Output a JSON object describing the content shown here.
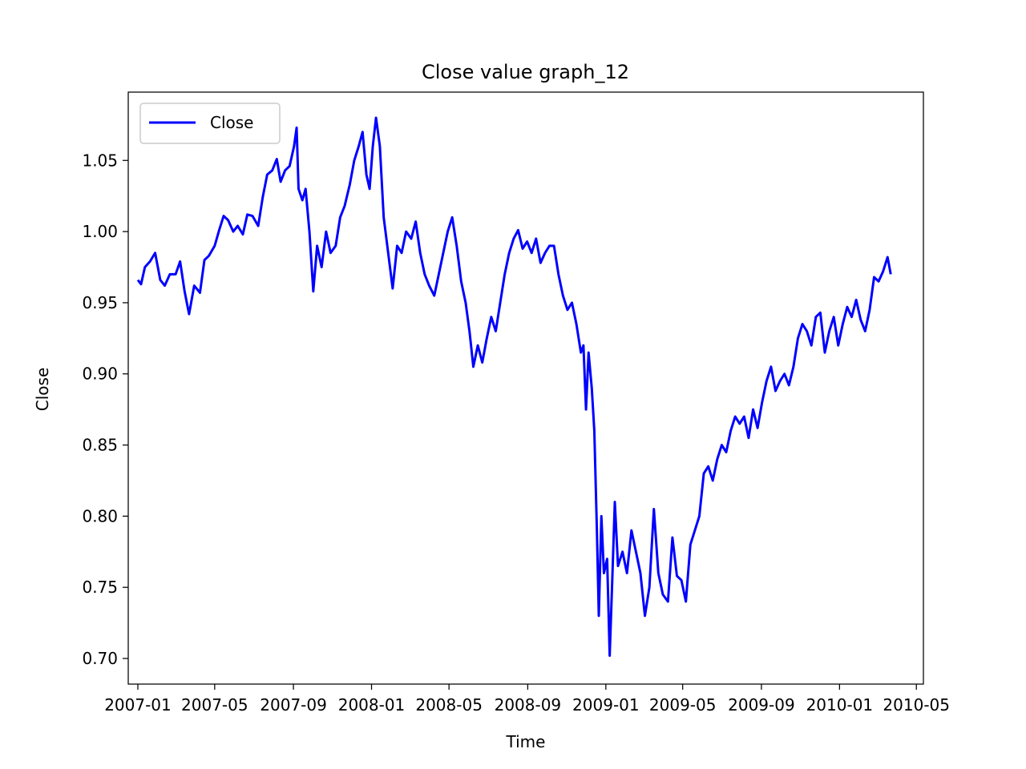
{
  "chart_data": {
    "type": "line",
    "title": "Close value graph_12",
    "xlabel": "Time",
    "ylabel": "Close",
    "xlim": [
      "2006-12-17",
      "2010-05-12"
    ],
    "ylim": [
      0.682,
      1.098
    ],
    "x_ticks": [
      "2007-01",
      "2007-05",
      "2007-09",
      "2008-01",
      "2008-05",
      "2008-09",
      "2009-01",
      "2009-05",
      "2009-09",
      "2010-01",
      "2010-05"
    ],
    "y_ticks": [
      "0.70",
      "0.75",
      "0.80",
      "0.85",
      "0.90",
      "0.95",
      "1.00",
      "1.05"
    ],
    "grid": false,
    "legend": {
      "position": "top-left",
      "entries": [
        "Close"
      ]
    },
    "series": [
      {
        "name": "Close",
        "color": "#0000ff",
        "points": [
          [
            "2007-01-01",
            0.966
          ],
          [
            "2007-01-06",
            0.963
          ],
          [
            "2007-01-12",
            0.975
          ],
          [
            "2007-01-20",
            0.979
          ],
          [
            "2007-01-28",
            0.985
          ],
          [
            "2007-02-05",
            0.966
          ],
          [
            "2007-02-12",
            0.962
          ],
          [
            "2007-02-20",
            0.97
          ],
          [
            "2007-03-01",
            0.97
          ],
          [
            "2007-03-08",
            0.979
          ],
          [
            "2007-03-15",
            0.958
          ],
          [
            "2007-03-22",
            0.942
          ],
          [
            "2007-03-30",
            0.962
          ],
          [
            "2007-04-08",
            0.957
          ],
          [
            "2007-04-15",
            0.98
          ],
          [
            "2007-04-22",
            0.983
          ],
          [
            "2007-05-01",
            0.99
          ],
          [
            "2007-05-08",
            1.001
          ],
          [
            "2007-05-15",
            1.011
          ],
          [
            "2007-05-22",
            1.008
          ],
          [
            "2007-05-30",
            1.0
          ],
          [
            "2007-06-06",
            1.004
          ],
          [
            "2007-06-14",
            0.998
          ],
          [
            "2007-06-21",
            1.012
          ],
          [
            "2007-06-29",
            1.011
          ],
          [
            "2007-07-08",
            1.004
          ],
          [
            "2007-07-15",
            1.024
          ],
          [
            "2007-07-22",
            1.04
          ],
          [
            "2007-07-30",
            1.043
          ],
          [
            "2007-08-06",
            1.051
          ],
          [
            "2007-08-12",
            1.035
          ],
          [
            "2007-08-19",
            1.043
          ],
          [
            "2007-08-26",
            1.046
          ],
          [
            "2007-09-02",
            1.06
          ],
          [
            "2007-09-06",
            1.073
          ],
          [
            "2007-09-09",
            1.03
          ],
          [
            "2007-09-15",
            1.022
          ],
          [
            "2007-09-20",
            1.03
          ],
          [
            "2007-09-26",
            1.0
          ],
          [
            "2007-10-02",
            0.958
          ],
          [
            "2007-10-08",
            0.99
          ],
          [
            "2007-10-15",
            0.975
          ],
          [
            "2007-10-22",
            1.0
          ],
          [
            "2007-10-29",
            0.985
          ],
          [
            "2007-11-06",
            0.99
          ],
          [
            "2007-11-13",
            1.01
          ],
          [
            "2007-11-20",
            1.018
          ],
          [
            "2007-11-28",
            1.033
          ],
          [
            "2007-12-05",
            1.05
          ],
          [
            "2007-12-12",
            1.06
          ],
          [
            "2007-12-18",
            1.07
          ],
          [
            "2007-12-24",
            1.04
          ],
          [
            "2007-12-29",
            1.03
          ],
          [
            "2008-01-03",
            1.06
          ],
          [
            "2008-01-08",
            1.08
          ],
          [
            "2008-01-14",
            1.06
          ],
          [
            "2008-01-20",
            1.01
          ],
          [
            "2008-01-27",
            0.985
          ],
          [
            "2008-02-03",
            0.96
          ],
          [
            "2008-02-10",
            0.99
          ],
          [
            "2008-02-17",
            0.985
          ],
          [
            "2008-02-24",
            1.0
          ],
          [
            "2008-03-03",
            0.995
          ],
          [
            "2008-03-10",
            1.007
          ],
          [
            "2008-03-17",
            0.985
          ],
          [
            "2008-03-24",
            0.97
          ],
          [
            "2008-03-31",
            0.962
          ],
          [
            "2008-04-08",
            0.955
          ],
          [
            "2008-04-15",
            0.97
          ],
          [
            "2008-04-22",
            0.985
          ],
          [
            "2008-04-29",
            1.0
          ],
          [
            "2008-05-06",
            1.01
          ],
          [
            "2008-05-13",
            0.99
          ],
          [
            "2008-05-20",
            0.965
          ],
          [
            "2008-05-27",
            0.95
          ],
          [
            "2008-06-02",
            0.93
          ],
          [
            "2008-06-08",
            0.905
          ],
          [
            "2008-06-15",
            0.92
          ],
          [
            "2008-06-22",
            0.908
          ],
          [
            "2008-06-29",
            0.925
          ],
          [
            "2008-07-06",
            0.94
          ],
          [
            "2008-07-13",
            0.93
          ],
          [
            "2008-07-20",
            0.95
          ],
          [
            "2008-07-27",
            0.97
          ],
          [
            "2008-08-03",
            0.985
          ],
          [
            "2008-08-10",
            0.995
          ],
          [
            "2008-08-17",
            1.001
          ],
          [
            "2008-08-24",
            0.988
          ],
          [
            "2008-08-31",
            0.993
          ],
          [
            "2008-09-07",
            0.985
          ],
          [
            "2008-09-14",
            0.995
          ],
          [
            "2008-09-21",
            0.978
          ],
          [
            "2008-09-28",
            0.985
          ],
          [
            "2008-10-05",
            0.99
          ],
          [
            "2008-10-12",
            0.99
          ],
          [
            "2008-10-19",
            0.97
          ],
          [
            "2008-10-26",
            0.955
          ],
          [
            "2008-11-02",
            0.945
          ],
          [
            "2008-11-09",
            0.95
          ],
          [
            "2008-11-16",
            0.935
          ],
          [
            "2008-11-23",
            0.915
          ],
          [
            "2008-11-27",
            0.92
          ],
          [
            "2008-12-01",
            0.875
          ],
          [
            "2008-12-05",
            0.915
          ],
          [
            "2008-12-10",
            0.89
          ],
          [
            "2008-12-14",
            0.86
          ],
          [
            "2008-12-18",
            0.79
          ],
          [
            "2008-12-21",
            0.73
          ],
          [
            "2008-12-25",
            0.8
          ],
          [
            "2008-12-29",
            0.76
          ],
          [
            "2009-01-03",
            0.77
          ],
          [
            "2009-01-07",
            0.702
          ],
          [
            "2009-01-11",
            0.755
          ],
          [
            "2009-01-15",
            0.81
          ],
          [
            "2009-01-20",
            0.765
          ],
          [
            "2009-01-27",
            0.775
          ],
          [
            "2009-02-03",
            0.76
          ],
          [
            "2009-02-10",
            0.79
          ],
          [
            "2009-02-17",
            0.775
          ],
          [
            "2009-02-24",
            0.76
          ],
          [
            "2009-03-03",
            0.73
          ],
          [
            "2009-03-10",
            0.75
          ],
          [
            "2009-03-17",
            0.805
          ],
          [
            "2009-03-24",
            0.76
          ],
          [
            "2009-03-31",
            0.745
          ],
          [
            "2009-04-08",
            0.74
          ],
          [
            "2009-04-15",
            0.785
          ],
          [
            "2009-04-22",
            0.758
          ],
          [
            "2009-04-29",
            0.755
          ],
          [
            "2009-05-06",
            0.74
          ],
          [
            "2009-05-13",
            0.78
          ],
          [
            "2009-05-20",
            0.79
          ],
          [
            "2009-05-27",
            0.8
          ],
          [
            "2009-06-03",
            0.83
          ],
          [
            "2009-06-10",
            0.835
          ],
          [
            "2009-06-17",
            0.825
          ],
          [
            "2009-06-24",
            0.84
          ],
          [
            "2009-07-01",
            0.85
          ],
          [
            "2009-07-08",
            0.845
          ],
          [
            "2009-07-15",
            0.86
          ],
          [
            "2009-07-22",
            0.87
          ],
          [
            "2009-07-29",
            0.865
          ],
          [
            "2009-08-05",
            0.87
          ],
          [
            "2009-08-12",
            0.855
          ],
          [
            "2009-08-19",
            0.875
          ],
          [
            "2009-08-26",
            0.862
          ],
          [
            "2009-09-02",
            0.88
          ],
          [
            "2009-09-09",
            0.895
          ],
          [
            "2009-09-16",
            0.905
          ],
          [
            "2009-09-23",
            0.888
          ],
          [
            "2009-09-30",
            0.895
          ],
          [
            "2009-10-07",
            0.9
          ],
          [
            "2009-10-14",
            0.892
          ],
          [
            "2009-10-21",
            0.905
          ],
          [
            "2009-10-28",
            0.925
          ],
          [
            "2009-11-04",
            0.935
          ],
          [
            "2009-11-11",
            0.93
          ],
          [
            "2009-11-18",
            0.92
          ],
          [
            "2009-11-25",
            0.94
          ],
          [
            "2009-12-02",
            0.943
          ],
          [
            "2009-12-09",
            0.915
          ],
          [
            "2009-12-16",
            0.93
          ],
          [
            "2009-12-23",
            0.94
          ],
          [
            "2009-12-30",
            0.92
          ],
          [
            "2010-01-06",
            0.935
          ],
          [
            "2010-01-13",
            0.947
          ],
          [
            "2010-01-20",
            0.94
          ],
          [
            "2010-01-27",
            0.952
          ],
          [
            "2010-02-03",
            0.938
          ],
          [
            "2010-02-10",
            0.93
          ],
          [
            "2010-02-17",
            0.945
          ],
          [
            "2010-02-24",
            0.968
          ],
          [
            "2010-03-03",
            0.965
          ],
          [
            "2010-03-10",
            0.972
          ],
          [
            "2010-03-17",
            0.982
          ],
          [
            "2010-03-22",
            0.97
          ]
        ]
      }
    ]
  }
}
